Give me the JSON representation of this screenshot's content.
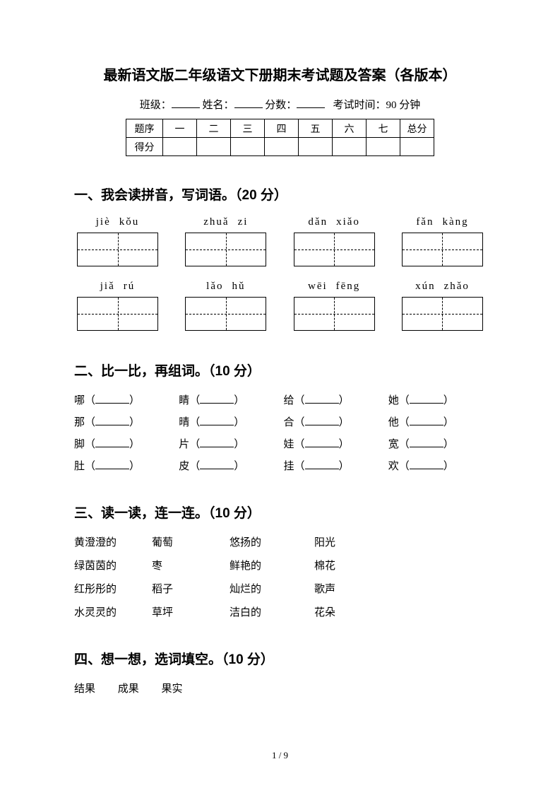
{
  "title": "最新语文版二年级语文下册期末考试题及答案（各版本）",
  "info": {
    "class_label": "班级：",
    "name_label": "姓名：",
    "score_label": "分数：",
    "time_label": "考试时间：90 分钟"
  },
  "scoreTable": {
    "row1_label": "题序",
    "cols": [
      "一",
      "二",
      "三",
      "四",
      "五",
      "六",
      "七",
      "总分"
    ],
    "row2_label": "得分"
  },
  "q1": {
    "heading": "一、我会读拼音，写词语。（20 分）",
    "row1": [
      {
        "a": "jiè",
        "b": "kǒu"
      },
      {
        "a": "zhuǎ",
        "b": "zi"
      },
      {
        "a": "dǎn",
        "b": "xiǎo"
      },
      {
        "a": "fǎn",
        "b": "kàng"
      }
    ],
    "row2": [
      {
        "a": "jiǎ",
        "b": "rú"
      },
      {
        "a": "lǎo",
        "b": "hǔ"
      },
      {
        "a": "wēi",
        "b": "fēng"
      },
      {
        "a": "xún",
        "b": "zhǎo"
      }
    ]
  },
  "q2": {
    "heading": "二、比一比，再组词。（10 分）",
    "items": [
      "哪",
      "睛",
      "给",
      "她",
      "那",
      "晴",
      "合",
      "他",
      "脚",
      "片",
      "娃",
      "宽",
      "肚",
      "皮",
      "挂",
      "欢"
    ]
  },
  "q3": {
    "heading": "三、读一读，连一连。（10 分）",
    "rows": [
      [
        "黄澄澄的",
        "葡萄",
        "悠扬的",
        "阳光"
      ],
      [
        "绿茵茵的",
        "枣",
        "鲜艳的",
        "棉花"
      ],
      [
        "红彤彤的",
        "稻子",
        "灿烂的",
        "歌声"
      ],
      [
        "水灵灵的",
        "草坪",
        "洁白的",
        "花朵"
      ]
    ]
  },
  "q4": {
    "heading": "四、想一想，选词填空。（10 分）",
    "words": [
      "结果",
      "成果",
      "果实"
    ]
  },
  "pageNum": "1 / 9"
}
